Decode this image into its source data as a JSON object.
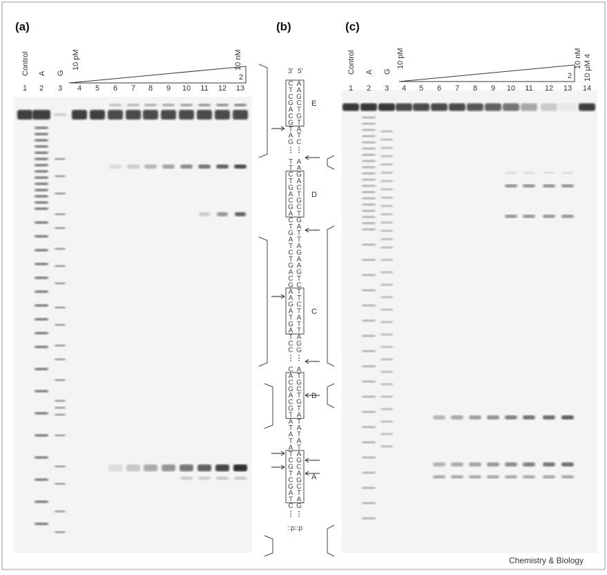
{
  "panels": [
    {
      "label": "(a)",
      "lane_labels": [
        "Control",
        "A",
        "G"
      ],
      "conc_low": "10 pM",
      "conc_high": "10 nM",
      "compound": "2",
      "lanes": [
        "1",
        "2",
        "3",
        "4",
        "5",
        "6",
        "7",
        "8",
        "9",
        "10",
        "11",
        "12",
        "13"
      ]
    },
    {
      "label": "(b)"
    },
    {
      "label": "(c)",
      "lane_labels": [
        "Control",
        "A",
        "G"
      ],
      "conc_low": "10 pM",
      "conc_high": "10 nM",
      "compound": "2",
      "extra": "10 μM 4",
      "lanes": [
        "1",
        "2",
        "3",
        "4",
        "5",
        "6",
        "7",
        "8",
        "9",
        "10",
        "11",
        "12",
        "13",
        "14"
      ]
    }
  ],
  "sequence": {
    "ends": [
      "3'",
      "5'"
    ],
    "segments": [
      [
        [
          "C",
          "A"
        ],
        [
          "T",
          "A"
        ],
        [
          "C",
          "G"
        ],
        [
          "G",
          "C"
        ],
        [
          "A",
          "T"
        ],
        [
          "C",
          "G"
        ],
        [
          "G",
          "T"
        ],
        [
          "T",
          "A"
        ],
        [
          "A",
          "T"
        ],
        [
          "G",
          "C"
        ]
      ],
      [
        [
          "T",
          "A"
        ],
        [
          "T",
          "A"
        ],
        [
          "C",
          "G"
        ],
        [
          "T",
          "A"
        ],
        [
          "G",
          "C"
        ],
        [
          "A",
          "T"
        ],
        [
          "C",
          "G"
        ],
        [
          "G",
          "C"
        ],
        [
          "A",
          "T"
        ],
        [
          "C",
          "G"
        ],
        [
          "T",
          "A"
        ],
        [
          "G",
          "T"
        ],
        [
          "A",
          "T"
        ],
        [
          "T",
          "A"
        ],
        [
          "C",
          "G"
        ],
        [
          "T",
          "A"
        ],
        [
          "G",
          "A"
        ],
        [
          "A",
          "G"
        ],
        [
          "C",
          "T"
        ],
        [
          "G",
          "C"
        ],
        [
          "A",
          "T"
        ],
        [
          "A",
          "T"
        ],
        [
          "G",
          "C"
        ],
        [
          "A",
          "T"
        ],
        [
          "T",
          "A"
        ],
        [
          "G",
          "T"
        ],
        [
          "A",
          "T"
        ],
        [
          "T",
          "A"
        ],
        [
          "C",
          "G"
        ],
        [
          "C",
          "G"
        ]
      ],
      [
        [
          "C",
          "A"
        ],
        [
          "A",
          "T"
        ],
        [
          "C",
          "G"
        ],
        [
          "G",
          "C"
        ],
        [
          "A",
          "T"
        ],
        [
          "C",
          "G"
        ],
        [
          "G",
          "T"
        ],
        [
          "T",
          "A"
        ],
        [
          "A",
          "T"
        ],
        [
          "T",
          "A"
        ],
        [
          "A",
          "T"
        ],
        [
          "T",
          "A"
        ],
        [
          "A",
          "T"
        ],
        [
          "T",
          "A"
        ],
        [
          "C",
          "G"
        ],
        [
          "G",
          "C"
        ],
        [
          "T",
          "A"
        ],
        [
          "C",
          "G"
        ],
        [
          "G",
          "C"
        ],
        [
          "A",
          "T"
        ],
        [
          "T",
          "A"
        ],
        [
          "C",
          "G"
        ]
      ]
    ],
    "tail": "::p::p",
    "regions": [
      "E",
      "D",
      "C",
      "B",
      "A"
    ]
  },
  "footer": "Chemistry & Biology"
}
